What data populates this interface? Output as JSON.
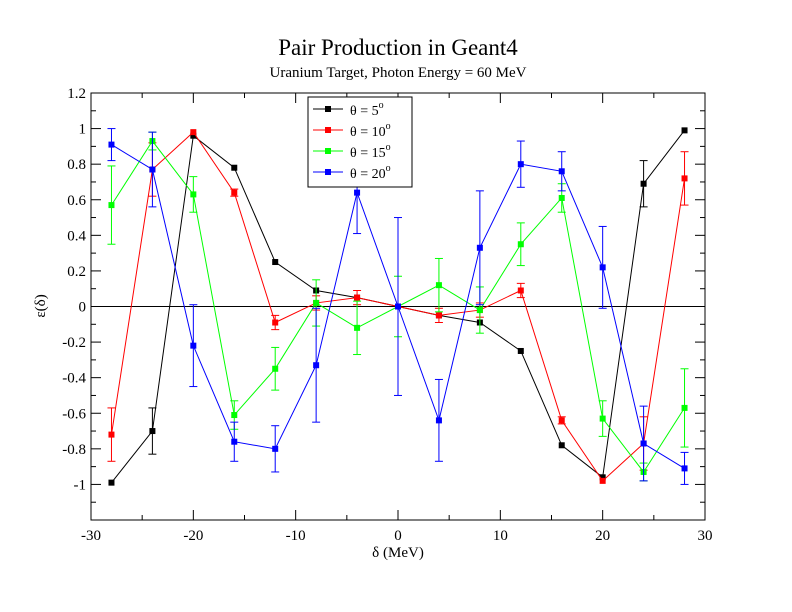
{
  "chart_data": {
    "type": "line",
    "title": "Pair Production in Geant4",
    "subtitle": "Uranium Target, Photon Energy = 60 MeV",
    "xlabel": "δ (MeV)",
    "ylabel": "ε(δ)",
    "xlim": [
      -30,
      30
    ],
    "ylim": [
      -1.2,
      1.2
    ],
    "x_ticks": [
      -30,
      -20,
      -10,
      0,
      10,
      20,
      30
    ],
    "x_tick_labels": [
      "-30",
      "-20",
      "-10",
      "0",
      "10",
      "20",
      "30"
    ],
    "y_ticks": [
      -1,
      -0.8,
      -0.6,
      -0.4,
      -0.2,
      0,
      0.2,
      0.4,
      0.6,
      0.8,
      1,
      1.2
    ],
    "y_tick_labels": [
      "-1",
      "-0.8",
      "-0.6",
      "-0.4",
      "-0.2",
      "0",
      "0.2",
      "0.4",
      "0.6",
      "0.8",
      "1",
      "1.2"
    ],
    "zero_line": true,
    "grid": false,
    "legend_position": "top-center",
    "x": [
      -28,
      -24,
      -20,
      -16,
      -12,
      -8,
      -4,
      0,
      4,
      8,
      12,
      16,
      20,
      24,
      28
    ],
    "series": [
      {
        "name": "θ = 5°",
        "label_main": "θ = 5",
        "label_sup": "o",
        "color": "#000000",
        "values": [
          -0.99,
          -0.7,
          0.96,
          0.78,
          0.25,
          0.09,
          0.05,
          0.0,
          -0.05,
          -0.09,
          -0.25,
          -0.78,
          -0.96,
          0.69,
          0.99
        ],
        "errors": [
          0.0,
          0.13,
          0.0,
          0.0,
          0.0,
          0.0,
          0.0,
          0.0,
          0.0,
          0.0,
          0.0,
          0.0,
          0.0,
          0.13,
          0.0
        ]
      },
      {
        "name": "θ = 10°",
        "label_main": "θ = 10",
        "label_sup": "o",
        "color": "#ff0000",
        "values": [
          -0.72,
          0.77,
          0.98,
          0.64,
          -0.09,
          0.02,
          0.05,
          0.0,
          -0.05,
          -0.02,
          0.09,
          -0.64,
          -0.98,
          -0.77,
          0.72
        ],
        "errors": [
          0.15,
          0.15,
          0.0,
          0.02,
          0.04,
          0.04,
          0.04,
          0.0,
          0.04,
          0.04,
          0.04,
          0.02,
          0.0,
          0.15,
          0.15
        ]
      },
      {
        "name": "θ = 15°",
        "label_main": "θ = 15",
        "label_sup": "o",
        "color": "#00ff00",
        "values": [
          0.57,
          0.93,
          0.63,
          -0.61,
          -0.35,
          0.02,
          -0.12,
          0.0,
          0.12,
          -0.02,
          0.35,
          0.61,
          -0.63,
          -0.93,
          -0.57
        ],
        "errors": [
          0.22,
          0.05,
          0.1,
          0.08,
          0.12,
          0.13,
          0.15,
          0.17,
          0.15,
          0.13,
          0.12,
          0.08,
          0.1,
          0.05,
          0.22
        ]
      },
      {
        "name": "θ = 20°",
        "label_main": "θ = 20",
        "label_sup": "o",
        "color": "#0000ff",
        "values": [
          0.91,
          0.77,
          -0.22,
          -0.76,
          -0.8,
          -0.33,
          0.64,
          0.0,
          -0.64,
          0.33,
          0.8,
          0.76,
          0.22,
          -0.77,
          -0.91
        ],
        "errors": [
          0.09,
          0.21,
          0.23,
          0.11,
          0.13,
          0.32,
          0.23,
          0.5,
          0.23,
          0.32,
          0.13,
          0.11,
          0.23,
          0.21,
          0.09
        ]
      }
    ]
  }
}
